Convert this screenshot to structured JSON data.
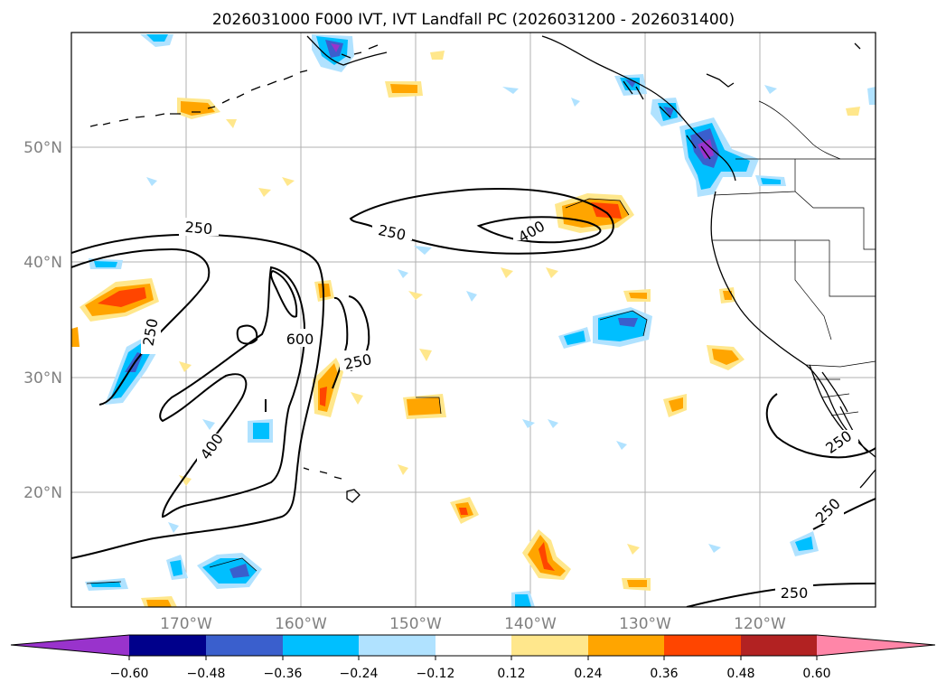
{
  "map": {
    "title": "2026031000 F000 IVT, IVT Landfall PC (2026031200 - 2026031400)",
    "projection": "PlateCarree",
    "lon_range": [
      -180,
      -110
    ],
    "lat_range": [
      10,
      60
    ],
    "lat_labels": [
      "50°N",
      "40°N",
      "30°N",
      "20°N"
    ],
    "lon_labels": [
      "170°W",
      "160°W",
      "150°W",
      "140°W",
      "130°W",
      "120°W"
    ],
    "contour_labels": [
      "250",
      "250",
      "400",
      "600",
      "250",
      "250",
      "400",
      "250",
      "250",
      "250"
    ]
  },
  "colorbar": {
    "tick_labels": [
      "−0.60",
      "−0.48",
      "−0.36",
      "−0.24",
      "−0.12",
      "0.12",
      "0.24",
      "0.36",
      "0.48",
      "0.60"
    ],
    "colors": [
      "#9933cc",
      "#00008b",
      "#3a5fcd",
      "#00bfff",
      "#b0e2ff",
      "#ffffff",
      "#ffe78c",
      "#ffa500",
      "#ff4500",
      "#b22222",
      "#ff86a8"
    ]
  },
  "palette": {
    "neg_light": "#b0e2ff",
    "neg_mid": "#00bfff",
    "neg_strong": "#3a5fcd",
    "neg_extreme": "#9933cc",
    "pos_light": "#ffe78c",
    "pos_mid": "#ffa500",
    "pos_strong": "#ff4500"
  }
}
